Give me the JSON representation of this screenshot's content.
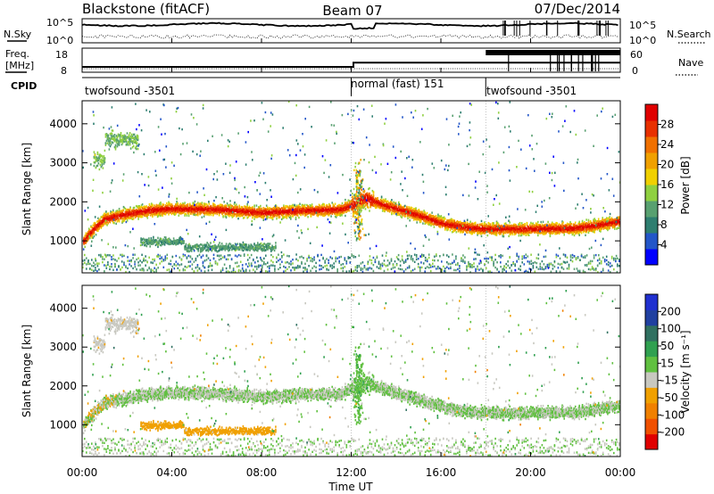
{
  "header": {
    "station": "Blackstone (fitACF)",
    "beam": "Beam 07",
    "date": "07/Dec/2014"
  },
  "top_panels": {
    "nsky_label": "N.Sky",
    "nsearch_label": "N.Search",
    "freq_label_1": "Freq.",
    "freq_label_2": "[MHz]",
    "nave_label": "Nave",
    "cpid_label": "CPID",
    "tick_10e5": "10^5",
    "tick_10e0": "10^0",
    "freq_ticks": [
      "18",
      "8"
    ],
    "nave_ticks": [
      "60",
      "0"
    ]
  },
  "cpid_segments": [
    {
      "label": "twofsound -3501",
      "start_h": 0,
      "end_h": 12.0
    },
    {
      "label": "normal (fast) 151",
      "start_h": 12.0,
      "end_h": 18.0
    },
    {
      "label": "twofsound -3501",
      "start_h": 18.0,
      "end_h": 24.0
    }
  ],
  "colorbars": {
    "power": {
      "title": "Power [dB]",
      "ticks": [
        "28",
        "24",
        "20",
        "16",
        "12",
        "8",
        "4"
      ],
      "colors": [
        "#0000ff",
        "#2356c8",
        "#2e7e70",
        "#58a070",
        "#8fd040",
        "#f0d000",
        "#f0a000",
        "#f07000",
        "#e83000",
        "#e00000"
      ]
    },
    "velocity": {
      "title": "Velocity [m s⁻¹]",
      "ticks": [
        "200",
        "100",
        "50",
        "15",
        "-15",
        "-50",
        "-100",
        "-200"
      ],
      "colors": [
        "#e00000",
        "#f05000",
        "#f08000",
        "#f0a000",
        "#c8c8c0",
        "#60c040",
        "#30a050",
        "#307060",
        "#2040a0",
        "#2030d0"
      ]
    }
  },
  "axes": {
    "y_label": "Slant Range [km]",
    "y_ticks": [
      "4000",
      "3000",
      "2000",
      "1000"
    ],
    "x_label": "Time UT",
    "x_ticks": [
      "00:00",
      "04:00",
      "08:00",
      "12:00",
      "16:00",
      "20:00",
      "00:00"
    ]
  },
  "chart_data": {
    "type": "heatmap",
    "title": "Blackstone (fitACF) Beam 07 07/Dec/2014",
    "x_unit_hours": [
      0,
      24
    ],
    "ylim_km": [
      180,
      4590
    ],
    "power_range_db": [
      0,
      30
    ],
    "velocity_range_ms": [
      -250,
      250
    ],
    "freq_mhz": [
      {
        "start_h": 0,
        "end_h": 12.1,
        "value": 10.5
      },
      {
        "start_h": 12.1,
        "end_h": 24,
        "value": 12.5
      }
    ],
    "main_band_center_km": [
      [
        0,
        950
      ],
      [
        0.5,
        1300
      ],
      [
        1,
        1560
      ],
      [
        2,
        1680
      ],
      [
        3,
        1780
      ],
      [
        4,
        1820
      ],
      [
        6,
        1800
      ],
      [
        8,
        1720
      ],
      [
        9.5,
        1760
      ],
      [
        11.5,
        1800
      ],
      [
        12.2,
        1950
      ],
      [
        12.6,
        2100
      ],
      [
        13.5,
        1900
      ],
      [
        15,
        1650
      ],
      [
        16,
        1450
      ],
      [
        17,
        1350
      ],
      [
        18,
        1300
      ],
      [
        20,
        1300
      ],
      [
        22,
        1320
      ],
      [
        23,
        1400
      ],
      [
        24,
        1500
      ]
    ],
    "main_band_power_db": 24,
    "main_band_velocity_ms": 0,
    "lower_blob": {
      "start_h": 2.6,
      "end_h": 8.6,
      "center_km": 830,
      "power_db": 10,
      "velocity_ms": -60
    },
    "upper_arc": {
      "start_h": 0.5,
      "end_h": 2.5,
      "center_km": 3600,
      "power_db": 12,
      "velocity_ms": -40
    }
  }
}
